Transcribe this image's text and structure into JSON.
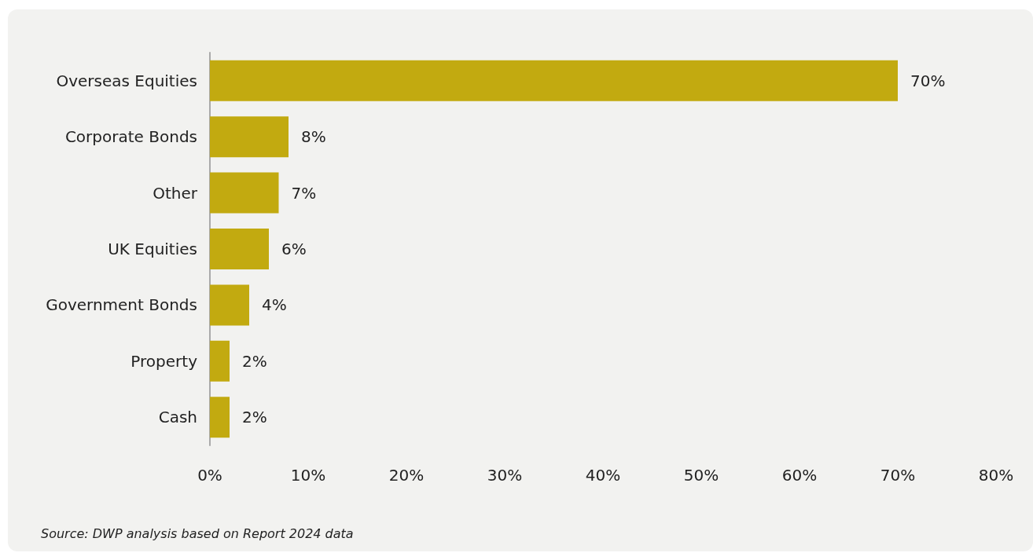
{
  "chart_data": {
    "type": "bar",
    "orientation": "horizontal",
    "categories": [
      "Overseas Equities",
      "Corporate Bonds",
      "Other",
      "UK Equities",
      "Government Bonds",
      "Property",
      "Cash"
    ],
    "values": [
      70,
      8,
      7,
      6,
      4,
      2,
      2
    ],
    "value_labels": [
      "70%",
      "8%",
      "7%",
      "6%",
      "4%",
      "2%",
      "2%"
    ],
    "color": "#c2aa10",
    "xlim": [
      0,
      80
    ],
    "xticks": [
      {
        "value": 0,
        "label": "0%"
      },
      {
        "value": 10,
        "label": "10%"
      },
      {
        "value": 20,
        "label": "20%"
      },
      {
        "value": 30,
        "label": "30%"
      },
      {
        "value": 40,
        "label": "40%"
      },
      {
        "value": 50,
        "label": "50%"
      },
      {
        "value": 60,
        "label": "60%"
      },
      {
        "value": 70,
        "label": "70%"
      },
      {
        "value": 80,
        "label": "80%"
      }
    ],
    "grid": false,
    "annotations": [
      "Source: DWP analysis based on Report 2024 data"
    ]
  }
}
